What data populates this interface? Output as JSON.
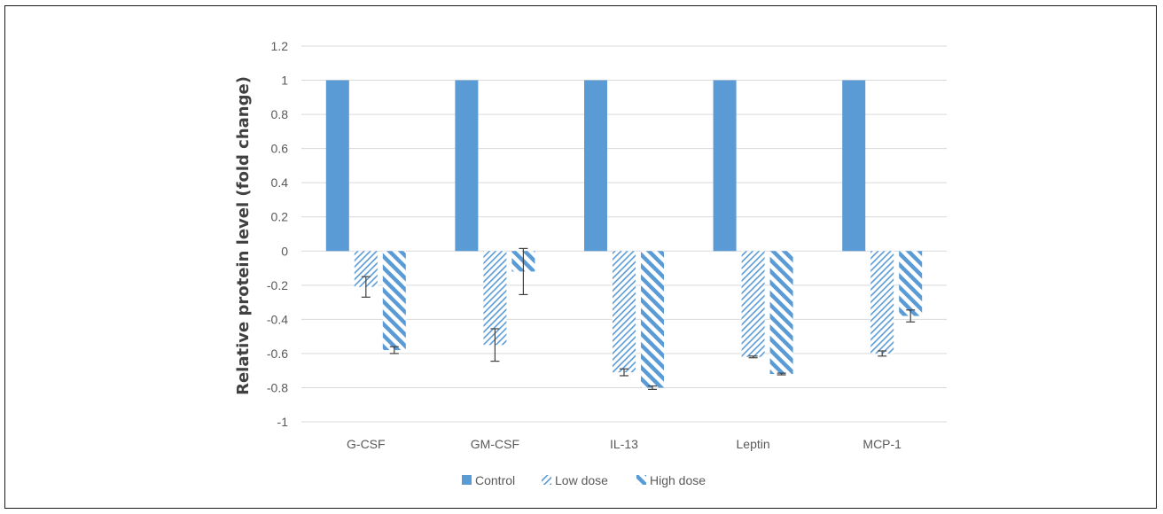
{
  "chart_data": {
    "type": "bar",
    "title": "",
    "xlabel": "",
    "ylabel": "Relative protein level (fold change)",
    "categories": [
      "G-CSF",
      "GM-CSF",
      "IL-13",
      "Leptin",
      "MCP-1"
    ],
    "ylim": [
      -1,
      1.2
    ],
    "yticks": [
      1.2,
      1,
      0.8,
      0.6,
      0.4,
      0.2,
      0,
      -0.2,
      -0.4,
      -0.6,
      -0.8,
      -1
    ],
    "ytick_labels": [
      "1.2",
      "1",
      "0.8",
      "0.6",
      "0.4",
      "0.2",
      "0",
      "-0.2",
      "-0.4",
      "-0.6",
      "-0.8",
      "-1"
    ],
    "grid": "horizontal",
    "legend_position": "bottom",
    "series": [
      {
        "name": "Control",
        "pattern": "solid",
        "color": "#5b9bd5",
        "values": [
          1,
          1,
          1,
          1,
          1
        ],
        "errors": [
          0,
          0,
          0,
          0,
          0
        ]
      },
      {
        "name": "Low dose",
        "pattern": "light-diagonal",
        "color": "#5b9bd5",
        "values": [
          -0.21,
          -0.55,
          -0.71,
          -0.62,
          -0.6
        ],
        "errors": [
          0.06,
          0.095,
          0.02,
          0.005,
          0.015
        ]
      },
      {
        "name": "High dose",
        "pattern": "wide-diagonal",
        "color": "#5b9bd5",
        "values": [
          -0.58,
          -0.12,
          -0.8,
          -0.72,
          -0.38
        ],
        "errors": [
          0.02,
          0.135,
          0.01,
          0.005,
          0.035
        ]
      }
    ],
    "colors": {
      "axis": "#d9d9d9",
      "grid": "#d9d9d9",
      "error_bar": "#404040"
    }
  }
}
